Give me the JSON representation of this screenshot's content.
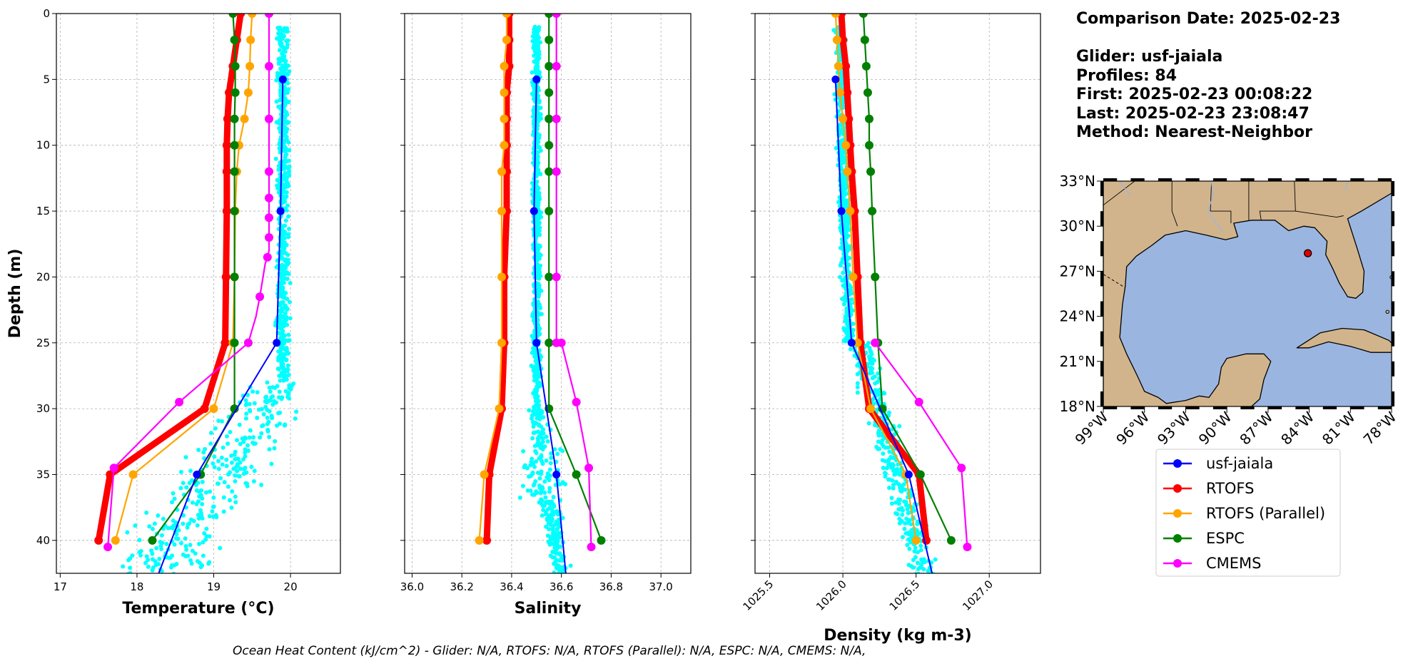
{
  "info": {
    "comparison_date": "Comparison Date: 2025-02-23",
    "glider": "Glider: usf-jaiala",
    "profiles": "Profiles: 84",
    "first": "First: 2025-02-23 00:08:22",
    "last": "Last: 2025-02-23 23:08:47",
    "method": "Method: Nearest-Neighbor"
  },
  "footer": "Ocean Heat Content (kJ/cm^2) - Glider: N/A,  RTOFS: N/A,  RTOFS (Parallel): N/A,  ESPC: N/A,  CMEMS: N/A,",
  "colors": {
    "usf-jaiala": "#0000ff",
    "RTOFS": "#ff0000",
    "RTOFS (Parallel)": "#ffa500",
    "ESPC": "#008000",
    "CMEMS": "#ff00ff",
    "glider_scatter": "#00ffff",
    "ocean": "#9ab6e0",
    "land": "#d2b48c"
  },
  "legend": [
    "usf-jaiala",
    "RTOFS",
    "RTOFS (Parallel)",
    "ESPC",
    "CMEMS"
  ],
  "chart_data": [
    {
      "type": "line",
      "xlabel": "Temperature (°C)",
      "ylabel": "Depth (m)",
      "xlim": [
        16.95,
        20.65
      ],
      "ylim": [
        42.5,
        0
      ],
      "xticks": [
        17,
        18,
        19,
        20
      ],
      "yticks": [
        0,
        5,
        10,
        15,
        20,
        25,
        30,
        35,
        40
      ],
      "grid": true,
      "series": [
        {
          "name": "usf-jaiala",
          "x": [
            19.9,
            19.87,
            19.82,
            18.78,
            18.25
          ],
          "y": [
            5,
            15,
            25,
            35,
            43
          ]
        },
        {
          "name": "RTOFS",
          "x": [
            19.35,
            19.3,
            19.25,
            19.2,
            19.18,
            19.17,
            19.17,
            19.17,
            19.16,
            19.15,
            19.15,
            18.88,
            17.65,
            17.5
          ],
          "y": [
            0,
            2,
            4,
            6,
            8,
            10,
            12,
            15,
            20,
            25,
            25,
            30,
            35,
            40
          ]
        },
        {
          "name": "RTOFS (Parallel)",
          "x": [
            19.5,
            19.48,
            19.47,
            19.45,
            19.4,
            19.33,
            19.3,
            19.28,
            19.27,
            19.25,
            19.0,
            17.95,
            17.72
          ],
          "y": [
            0,
            2,
            4,
            6,
            8,
            10,
            12,
            15,
            20,
            25,
            30,
            35,
            40
          ]
        },
        {
          "name": "ESPC",
          "x": [
            19.25,
            19.27,
            19.28,
            19.28,
            19.27,
            19.27,
            19.27,
            19.27,
            19.27,
            19.27,
            19.27,
            18.83,
            18.2
          ],
          "y": [
            0,
            2,
            4,
            6,
            8,
            10,
            12,
            15,
            20,
            25,
            30,
            35,
            40
          ]
        },
        {
          "name": "CMEMS",
          "x": [
            19.72,
            19.72,
            19.72,
            19.72,
            19.72,
            19.72,
            19.72,
            19.72,
            19.72,
            19.72,
            19.72,
            19.72,
            19.72,
            19.72,
            19.7,
            19.67,
            19.6,
            19.55,
            19.45,
            18.55,
            17.7,
            17.62
          ],
          "y": [
            0,
            2,
            4,
            6,
            8,
            10,
            12,
            13,
            14,
            15,
            15.5,
            16,
            17,
            18,
            18.5,
            19,
            21.5,
            23,
            25,
            29.5,
            34.5,
            40.5
          ]
        }
      ]
    },
    {
      "type": "line",
      "xlabel": "Salinity",
      "ylabel": "",
      "xlim": [
        35.97,
        37.12
      ],
      "ylim": [
        42.5,
        0
      ],
      "xticks": [
        36.0,
        36.2,
        36.4,
        36.6,
        36.8,
        37.0
      ],
      "yticks": [
        0,
        5,
        10,
        15,
        20,
        25,
        30,
        35,
        40
      ],
      "grid": true,
      "series": [
        {
          "name": "usf-jaiala",
          "x": [
            36.5,
            36.49,
            36.5,
            36.58,
            36.62
          ],
          "y": [
            5,
            15,
            25,
            35,
            43
          ]
        },
        {
          "name": "RTOFS",
          "x": [
            36.39,
            36.39,
            36.39,
            36.38,
            36.38,
            36.38,
            36.38,
            36.38,
            36.37,
            36.37,
            36.36,
            36.31,
            36.3
          ],
          "y": [
            0,
            2,
            4,
            6,
            8,
            10,
            12,
            15,
            20,
            25,
            30,
            35,
            40
          ]
        },
        {
          "name": "RTOFS (Parallel)",
          "x": [
            36.38,
            36.38,
            36.37,
            36.37,
            36.37,
            36.37,
            36.36,
            36.36,
            36.36,
            36.36,
            36.35,
            36.29,
            36.27
          ],
          "y": [
            0,
            2,
            4,
            6,
            8,
            10,
            12,
            15,
            20,
            25,
            30,
            35,
            40
          ]
        },
        {
          "name": "ESPC",
          "x": [
            36.55,
            36.55,
            36.55,
            36.55,
            36.55,
            36.55,
            36.55,
            36.55,
            36.55,
            36.55,
            36.55,
            36.66,
            36.76
          ],
          "y": [
            0,
            2,
            4,
            6,
            8,
            10,
            12,
            15,
            20,
            25,
            30,
            35,
            40
          ]
        },
        {
          "name": "CMEMS",
          "x": [
            36.58,
            36.58,
            36.58,
            36.58,
            36.58,
            36.58,
            36.58,
            36.58,
            36.58,
            36.58,
            36.6,
            36.66,
            36.71,
            36.72
          ],
          "y": [
            0,
            2,
            4,
            6,
            8,
            10,
            12,
            15,
            20,
            25,
            25,
            29.5,
            34.5,
            40.5
          ]
        }
      ]
    },
    {
      "type": "line",
      "xlabel": "Density (kg m-3)",
      "ylabel": "",
      "xlim": [
        1025.4,
        1027.35
      ],
      "ylim": [
        42.5,
        0
      ],
      "xticks": [
        1025.5,
        1026.0,
        1026.5,
        1027.0
      ],
      "yticks": [
        0,
        5,
        10,
        15,
        20,
        25,
        30,
        35,
        40
      ],
      "grid": true,
      "series": [
        {
          "name": "usf-jaiala",
          "x": [
            1025.95,
            1025.99,
            1026.06,
            1026.45,
            1026.62
          ],
          "y": [
            5,
            15,
            25,
            35,
            43
          ]
        },
        {
          "name": "RTOFS",
          "x": [
            1025.99,
            1026.0,
            1026.02,
            1026.03,
            1026.04,
            1026.05,
            1026.06,
            1026.08,
            1026.1,
            1026.12,
            1026.18,
            1026.52,
            1026.57
          ],
          "y": [
            0,
            2,
            4,
            6,
            8,
            10,
            12,
            15,
            20,
            25,
            30,
            35,
            40
          ]
        },
        {
          "name": "RTOFS (Parallel)",
          "x": [
            1025.95,
            1025.96,
            1025.97,
            1025.98,
            1026.0,
            1026.02,
            1026.03,
            1026.05,
            1026.07,
            1026.1,
            1026.19,
            1026.43,
            1026.5
          ],
          "y": [
            0,
            2,
            4,
            6,
            8,
            10,
            12,
            15,
            20,
            25,
            30,
            35,
            40
          ]
        },
        {
          "name": "ESPC",
          "x": [
            1026.14,
            1026.15,
            1026.16,
            1026.17,
            1026.18,
            1026.18,
            1026.19,
            1026.2,
            1026.22,
            1026.24,
            1026.27,
            1026.53,
            1026.74
          ],
          "y": [
            0,
            2,
            4,
            6,
            8,
            10,
            12,
            15,
            20,
            25,
            30,
            35,
            40
          ]
        },
        {
          "name": "CMEMS",
          "x": [
            1026.22,
            1026.52,
            1026.81,
            1026.85
          ],
          "y": [
            25,
            29.5,
            34.5,
            40.5
          ]
        }
      ]
    }
  ],
  "map": {
    "lat_labels": [
      "33°N",
      "30°N",
      "27°N",
      "24°N",
      "21°N",
      "18°N"
    ],
    "lon_labels": [
      "99°W",
      "96°W",
      "93°W",
      "90°W",
      "87°W",
      "84°W",
      "81°W",
      "78°W"
    ],
    "lat_values": [
      33,
      30,
      27,
      24,
      21,
      18
    ],
    "lon_values": [
      -99,
      -96,
      -93,
      -90,
      -87,
      -84,
      -81,
      -78
    ],
    "lat_range": [
      18,
      33
    ],
    "lon_range": [
      -99,
      -78
    ],
    "glider_lon": -84.1,
    "glider_lat": 28.2
  }
}
